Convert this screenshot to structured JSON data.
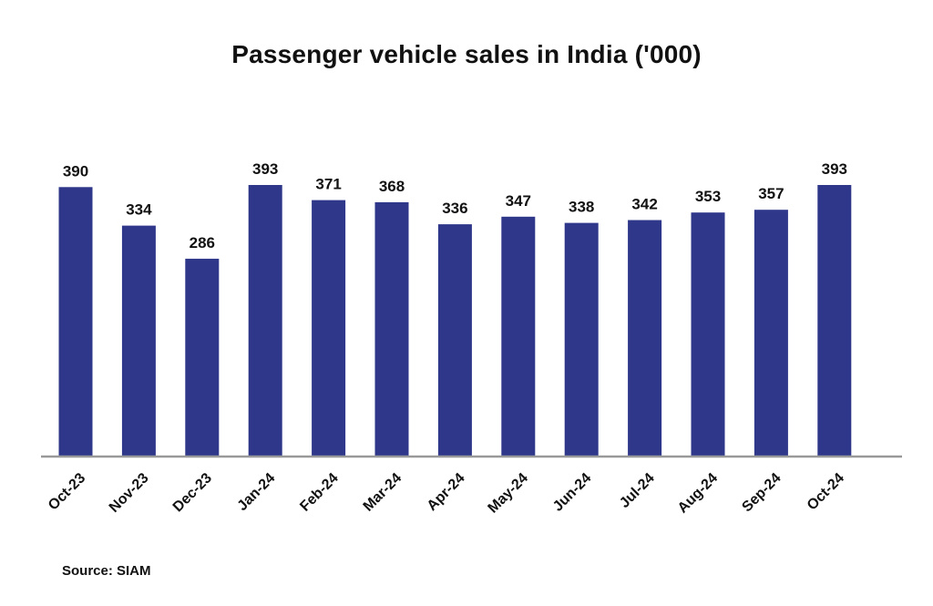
{
  "chart_data": {
    "type": "bar",
    "title": "Passenger vehicle sales in India ('000)",
    "xlabel": "",
    "ylabel": "",
    "categories": [
      "Oct-23",
      "Nov-23",
      "Dec-23",
      "Jan-24",
      "Feb-24",
      "Mar-24",
      "Apr-24",
      "May-24",
      "Jun-24",
      "Jul-24",
      "Aug-24",
      "Sep-24",
      "Oct-24"
    ],
    "values": [
      390,
      334,
      286,
      393,
      371,
      368,
      336,
      347,
      338,
      342,
      353,
      357,
      393
    ],
    "ylim": [
      0,
      393
    ],
    "grid": false,
    "legend": "none",
    "bar_color": "#2e378a",
    "axis_color": "#999999"
  },
  "source": "Source: SIAM"
}
